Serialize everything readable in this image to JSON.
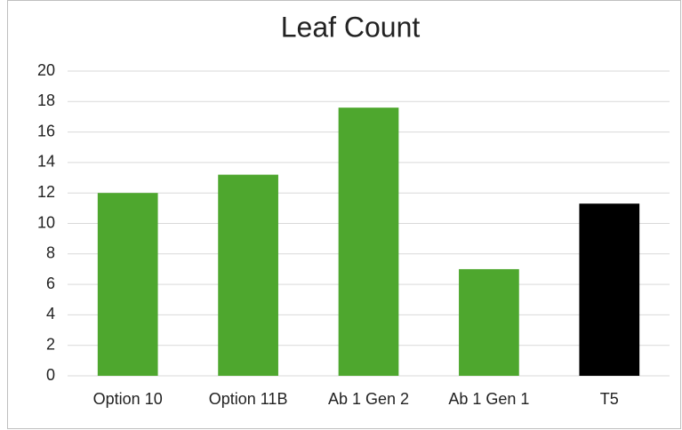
{
  "chart_data": {
    "type": "bar",
    "title": "Leaf Count",
    "categories": [
      "Option 10",
      "Option 11B",
      "Ab 1 Gen 2",
      "Ab 1 Gen 1",
      "T5"
    ],
    "values": [
      12,
      13.2,
      17.6,
      7,
      11.3
    ],
    "colors": [
      "#4ea72e",
      "#4ea72e",
      "#4ea72e",
      "#4ea72e",
      "#000000"
    ],
    "ylim": [
      0,
      20
    ],
    "yticks": [
      0,
      2,
      4,
      6,
      8,
      10,
      12,
      14,
      16,
      18,
      20
    ],
    "grid": true
  }
}
